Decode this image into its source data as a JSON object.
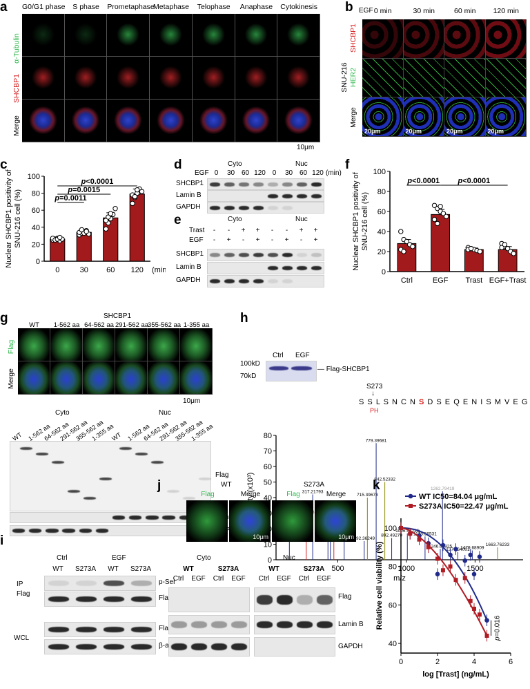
{
  "panels": {
    "a": {
      "label": "a",
      "columns": [
        "G0/G1 phase",
        "S phase",
        "Prometaphase",
        "Metaphase",
        "Telophase",
        "Anaphase",
        "Cytokinesis"
      ],
      "rows": [
        "α-Tubulin",
        "SHCBP1",
        "Merge"
      ],
      "scalebar": "10μm"
    },
    "b": {
      "label": "b",
      "treatment": "EGF",
      "times": [
        "0 min",
        "30 min",
        "60 min",
        "120 min"
      ],
      "cell_line": "SNU-216",
      "rows": [
        "SHCBP1",
        "HER2",
        "Merge"
      ],
      "scalebar": "20μm"
    },
    "c": {
      "label": "c"
    },
    "d": {
      "label": "d",
      "groups": [
        "Cyto",
        "Nuc"
      ],
      "treatment": "EGF",
      "times": [
        "0",
        "30",
        "60",
        "120"
      ],
      "unit": "(min)",
      "proteins": [
        "SHCBP1",
        "Lamin B",
        "GAPDH"
      ]
    },
    "e": {
      "label": "e",
      "groups": [
        "Cyto",
        "Nuc"
      ],
      "conditions": [
        "Trast",
        "EGF"
      ],
      "signs_trast": [
        "-",
        "-",
        "+",
        "+"
      ],
      "signs_egf": [
        "-",
        "+",
        "-",
        "+"
      ],
      "proteins": [
        "SHCBP1",
        "Lamin B",
        "GAPDH"
      ]
    },
    "f": {
      "label": "f"
    },
    "g": {
      "label": "g",
      "protein": "SHCBP1",
      "constructs": [
        "WT",
        "1-562 aa",
        "64-562 aa",
        "291-562 aa",
        "355-562 aa",
        "1-355 aa"
      ],
      "rows": [
        "Flag",
        "Merge"
      ],
      "scalebar": "10μm",
      "groups": [
        "Cyto",
        "Nuc"
      ],
      "blots": [
        "Flag",
        "Lamin B",
        "GAPDH"
      ]
    },
    "h": {
      "label": "h",
      "gel_lanes": [
        "Ctrl",
        "EGF"
      ],
      "markers": [
        "100kD",
        "70kD"
      ],
      "band": "Flag-SHCBP1",
      "site": "S273",
      "sequence": [
        "S",
        "S",
        "L",
        "S",
        "N",
        "C",
        "N",
        "S",
        "D",
        "S",
        "E",
        "Q",
        "E",
        "N",
        "I",
        "S",
        "M",
        "V",
        "E",
        "G",
        "L",
        "K"
      ],
      "ph": "PH",
      "ms_ylabel": "Intensity (x10³)",
      "ms_xlabel": "m/z",
      "peaks": [
        "779.39681",
        "317.21793",
        "446.2595",
        "270.14462",
        "471.22137",
        "715.39673",
        "842.52332",
        "147.11253",
        "546.32819",
        "428.25067",
        "692.36249",
        "892.49279",
        "1006.52226",
        "1135.56531",
        "1246.60925",
        "1374.64001",
        "1479.68909",
        "1663.76233",
        "1262.79419"
      ]
    },
    "i": {
      "label": "i",
      "groups": [
        "Ctrl",
        "EGF"
      ],
      "lanes": [
        "WT",
        "S273A",
        "WT",
        "S273A"
      ],
      "left": [
        "IP",
        "Flag",
        "WCL"
      ],
      "blots": [
        "p-Ser",
        "Flag-SHCBP1",
        "Flag-SHCBP1",
        "β-actin"
      ]
    },
    "j": {
      "label": "j",
      "groups": [
        "WT",
        "S273A"
      ],
      "subcols": [
        "Flag",
        "Merge",
        "Flag",
        "Merge"
      ],
      "scalebar": "10μm",
      "fractions": [
        "Cyto",
        "Nuc"
      ],
      "lanes": [
        "WT",
        "S273A",
        "WT",
        "S273A"
      ],
      "treat": [
        "Ctrl",
        "EGF",
        "Ctrl",
        "EGF",
        "Ctrl",
        "EGF",
        "Ctrl",
        "EGF"
      ],
      "blots": [
        "Flag",
        "Lamin B",
        "GAPDH"
      ]
    },
    "k": {
      "label": "k"
    }
  },
  "chart_data": [
    {
      "id": "c",
      "type": "bar",
      "categories": [
        "0",
        "30",
        "60",
        "120"
      ],
      "x_unit": "(min)",
      "values": [
        26,
        34,
        51,
        79
      ],
      "errors": [
        1.5,
        2.5,
        6,
        6
      ],
      "ylabel": "Nuclear SHCBP1 positivity of  SNU-216 cell (%)",
      "ylim": [
        0,
        100
      ],
      "yticks": [
        0,
        20,
        40,
        60,
        80,
        100
      ],
      "annotations": [
        {
          "text": "p=0.0011",
          "from": "0",
          "to": "30"
        },
        {
          "text": "p=0.0015",
          "from": "0",
          "to": "60"
        },
        {
          "text": "p<0.0001",
          "from": "0",
          "to": "120"
        }
      ],
      "points": [
        [
          25,
          26,
          27,
          24,
          26,
          27,
          25,
          26,
          28
        ],
        [
          31,
          33,
          35,
          36,
          32,
          34,
          37,
          33,
          35
        ],
        [
          38,
          45,
          50,
          55,
          62,
          48,
          52,
          56
        ],
        [
          68,
          75,
          80,
          85,
          82,
          78,
          76,
          84
        ]
      ]
    },
    {
      "id": "f",
      "type": "bar",
      "categories": [
        "Ctrl",
        "EGF",
        "Trast",
        "EGF+Trast"
      ],
      "values": [
        28,
        57,
        22,
        22
      ],
      "errors": [
        4,
        5,
        1.5,
        3
      ],
      "ylabel": "Nuclear SHCBP1 positivity of  SNU-216 cell (%)",
      "ylim": [
        0,
        100
      ],
      "yticks": [
        0,
        20,
        40,
        60,
        80,
        100
      ],
      "annotations": [
        {
          "text": "p<0.0001",
          "from": "Ctrl",
          "to": "EGF"
        },
        {
          "text": "p<0.0001",
          "from": "EGF",
          "to": "EGF+Trast"
        }
      ],
      "points": [
        [
          40,
          32,
          30,
          27,
          25,
          22,
          20
        ],
        [
          66,
          63,
          60,
          58,
          55,
          52,
          48,
          65
        ],
        [
          24,
          23,
          22,
          21,
          20,
          22,
          23
        ],
        [
          28,
          25,
          23,
          20,
          18,
          24,
          27
        ]
      ]
    },
    {
      "id": "k",
      "type": "line",
      "xlabel": "log [Trast] (ng/mL)",
      "ylabel": "Relative cell viability (%)",
      "xlim": [
        0,
        6
      ],
      "ylim": [
        35,
        105
      ],
      "xticks": [
        0,
        2,
        4,
        6
      ],
      "yticks": [
        40,
        60,
        80,
        100
      ],
      "series": [
        {
          "name": "WT",
          "legend": "WT  IC50=84.04 μg/mL",
          "color": "#1f2a8a",
          "x": [
            0,
            0.5,
            1,
            1.5,
            2,
            2.3,
            2.7,
            3,
            3.5,
            3.8,
            4,
            4.3,
            4.7
          ],
          "y": [
            100,
            97,
            96,
            92,
            76,
            91,
            86,
            89,
            83,
            86,
            76,
            85,
            52
          ]
        },
        {
          "name": "S273A",
          "legend": "S273A IC50=22.47 μg/mL",
          "color": "#b01c24",
          "x": [
            0,
            0.5,
            1,
            1.5,
            2,
            2.3,
            2.7,
            3,
            3.5,
            3.8,
            4,
            4.3,
            4.7
          ],
          "y": [
            100,
            97,
            94,
            90,
            84,
            78,
            80,
            73,
            74,
            62,
            58,
            55,
            44
          ]
        }
      ],
      "annotation": "p=0.016"
    }
  ]
}
